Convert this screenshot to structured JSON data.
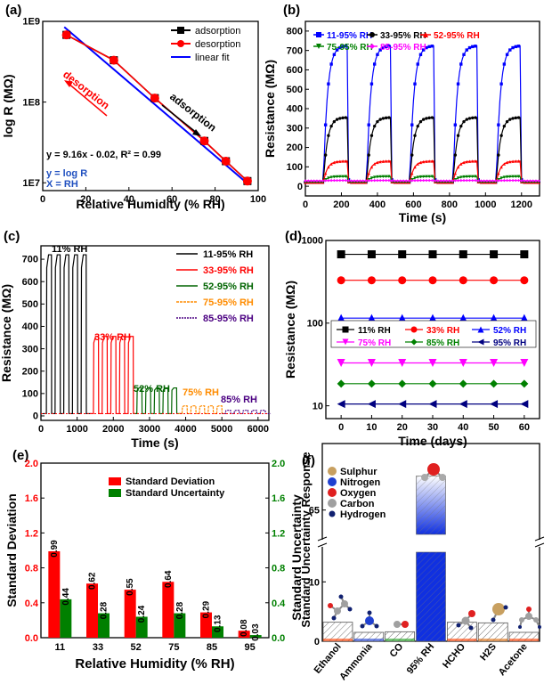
{
  "panels": [
    {
      "id": "a",
      "label": "(a)",
      "type": "line",
      "ylog": true,
      "xlabel": "Relative Humidity (% RH)",
      "ylabel": "log R (MΩ)",
      "xlim": [
        0,
        100
      ],
      "ylim": [
        8000000,
        1000000000
      ],
      "xticks": [
        0,
        20,
        40,
        60,
        80,
        100
      ],
      "yticks": [
        {
          "v": 10000000,
          "t": "1E7"
        },
        {
          "v": 100000000,
          "t": "1E8"
        },
        {
          "v": 1000000000,
          "t": "1E9"
        }
      ],
      "series": [
        {
          "name": "adsorption",
          "color": "#000000",
          "marker": "square",
          "x": [
            11,
            33,
            52,
            75,
            85,
            95
          ],
          "y": [
            680000000,
            330000000,
            112000000,
            33000000,
            18500000,
            10500000
          ]
        },
        {
          "name": "desorption",
          "color": "#ff0000",
          "marker": "circle",
          "x": [
            11,
            33,
            52,
            75,
            85,
            95
          ],
          "y": [
            680000000,
            330000000,
            112000000,
            33000000,
            18500000,
            10500000
          ]
        },
        {
          "name": "linear fit",
          "color": "#0000ff",
          "marker": "none",
          "x": [
            10,
            95
          ],
          "y": [
            850000000,
            9800000
          ]
        }
      ],
      "annotations": [
        "desorption",
        "adsorption",
        "y = 9.16x - 0.02, R² = 0.99",
        "y = log R",
        "X = RH"
      ]
    },
    {
      "id": "b",
      "label": "(b)",
      "type": "line",
      "xlabel": "Time (s)",
      "ylabel": "Resistance (MΩ)",
      "xlim": [
        0,
        1300
      ],
      "ylim": [
        -50,
        850
      ],
      "xticks": [
        0,
        200,
        400,
        600,
        800,
        1000,
        1200
      ],
      "yticks": [
        0,
        100,
        200,
        300,
        400,
        500,
        600,
        700,
        800
      ],
      "series": [
        {
          "name": "11-95% RH",
          "color": "#0000ff",
          "marker": "square",
          "high": 725
        },
        {
          "name": "33-95% RH",
          "color": "#000000",
          "marker": "circle",
          "high": 355
        },
        {
          "name": "52-95% RH",
          "color": "#ff0000",
          "marker": "triangle-up",
          "high": 130
        },
        {
          "name": "75-95% RH",
          "color": "#008000",
          "marker": "triangle-down",
          "high": 50
        },
        {
          "name": "85-95% RH",
          "color": "#ff00ff",
          "marker": "diamond",
          "high": 30
        }
      ]
    },
    {
      "id": "c",
      "label": "(c)",
      "type": "line",
      "xlabel": "Time (s)",
      "ylabel": "Resistance (MΩ)",
      "xlim": [
        0,
        6300
      ],
      "ylim": [
        -20,
        760
      ],
      "xticks": [
        0,
        1000,
        2000,
        3000,
        4000,
        5000,
        6000
      ],
      "yticks": [
        0,
        100,
        200,
        300,
        400,
        500,
        600,
        700
      ],
      "series": [
        {
          "name": "11-95% RH",
          "color": "#000000",
          "high": 720,
          "start": 150
        },
        {
          "name": "33-95% RH",
          "color": "#ff0000",
          "high": 355,
          "start": 1450
        },
        {
          "name": "52-95% RH",
          "color": "#006400",
          "high": 125,
          "start": 2650
        },
        {
          "name": "75-95% RH",
          "color": "#ff8c00",
          "high": 45,
          "start": 3900
        },
        {
          "name": "85-95% RH",
          "color": "#4b0082",
          "high": 25,
          "start": 5100
        }
      ],
      "annotations": [
        "11% RH",
        "33% RH",
        "52% RH",
        "75% RH",
        "85% RH"
      ]
    },
    {
      "id": "d",
      "label": "(d)",
      "type": "scatter",
      "ylog": true,
      "xlabel": "Time (days)",
      "ylabel": "Resistance (MΩ)",
      "xlim": [
        -5,
        65
      ],
      "ylim": [
        7,
        1000
      ],
      "xticks": [
        0,
        10,
        20,
        30,
        40,
        50,
        60
      ],
      "yticks": [
        {
          "v": 10,
          "t": "10"
        },
        {
          "v": 100,
          "t": "100"
        },
        {
          "v": 1000,
          "t": "1000"
        }
      ],
      "x": [
        0,
        10,
        20,
        30,
        40,
        50,
        60
      ],
      "series": [
        {
          "name": "11% RH",
          "color": "#000000",
          "marker": "square",
          "value": 680
        },
        {
          "name": "33% RH",
          "color": "#ff0000",
          "marker": "circle",
          "value": 330
        },
        {
          "name": "52% RH",
          "color": "#0000ff",
          "marker": "triangle-up",
          "value": 115
        },
        {
          "name": "75% RH",
          "color": "#ff00ff",
          "marker": "triangle-down",
          "value": 33
        },
        {
          "name": "85% RH",
          "color": "#008000",
          "marker": "diamond",
          "value": 18.5
        },
        {
          "name": "95% RH",
          "color": "#000080",
          "marker": "triangle-left",
          "value": 10.5
        }
      ]
    },
    {
      "id": "e",
      "label": "(e)",
      "type": "bar",
      "xlabel": "Relative Humidity (% RH)",
      "ylabel": "Standard Deviation",
      "y2label": "Standard Uncertainty",
      "categories": [
        "11",
        "33",
        "52",
        "75",
        "85",
        "95"
      ],
      "ylim": [
        0,
        2.0
      ],
      "yticks": [
        0.0,
        0.4,
        0.8,
        1.2,
        1.6,
        2.0
      ],
      "series": [
        {
          "name": "Standard Deviation",
          "color": "#ff0000",
          "axis": "left",
          "values": [
            0.99,
            0.62,
            0.55,
            0.64,
            0.29,
            0.08
          ],
          "labels": [
            "0.99",
            "0.62",
            "0.55",
            "0.64",
            "0.29",
            "0.08"
          ]
        },
        {
          "name": "Standard Uncertainty",
          "color": "#008000",
          "axis": "right",
          "values": [
            0.44,
            0.28,
            0.24,
            0.28,
            0.13,
            0.03
          ],
          "labels": [
            "0.44",
            "0.28",
            "0.24",
            "0.28",
            "0.13",
            "0.03"
          ]
        }
      ]
    },
    {
      "id": "f",
      "label": "(f)",
      "type": "bar",
      "ylabel": "Standard Uncertainty Response",
      "categories": [
        "Ethanol",
        "Ammonia",
        "CO",
        "95% RH",
        "HCHO",
        "H2S",
        "Acetone"
      ],
      "values": [
        3.2,
        1.5,
        1.6,
        72,
        3.2,
        3.1,
        1.5
      ],
      "yticks": [
        0,
        10,
        65
      ],
      "legend": [
        {
          "name": "Sulphur",
          "color": "#c8a060"
        },
        {
          "name": "Nitrogen",
          "color": "#2040d0"
        },
        {
          "name": "Oxygen",
          "color": "#e02020"
        },
        {
          "name": "Carbon",
          "color": "#a0a0a0"
        },
        {
          "name": "Hydrogen",
          "color": "#102070"
        }
      ]
    }
  ]
}
